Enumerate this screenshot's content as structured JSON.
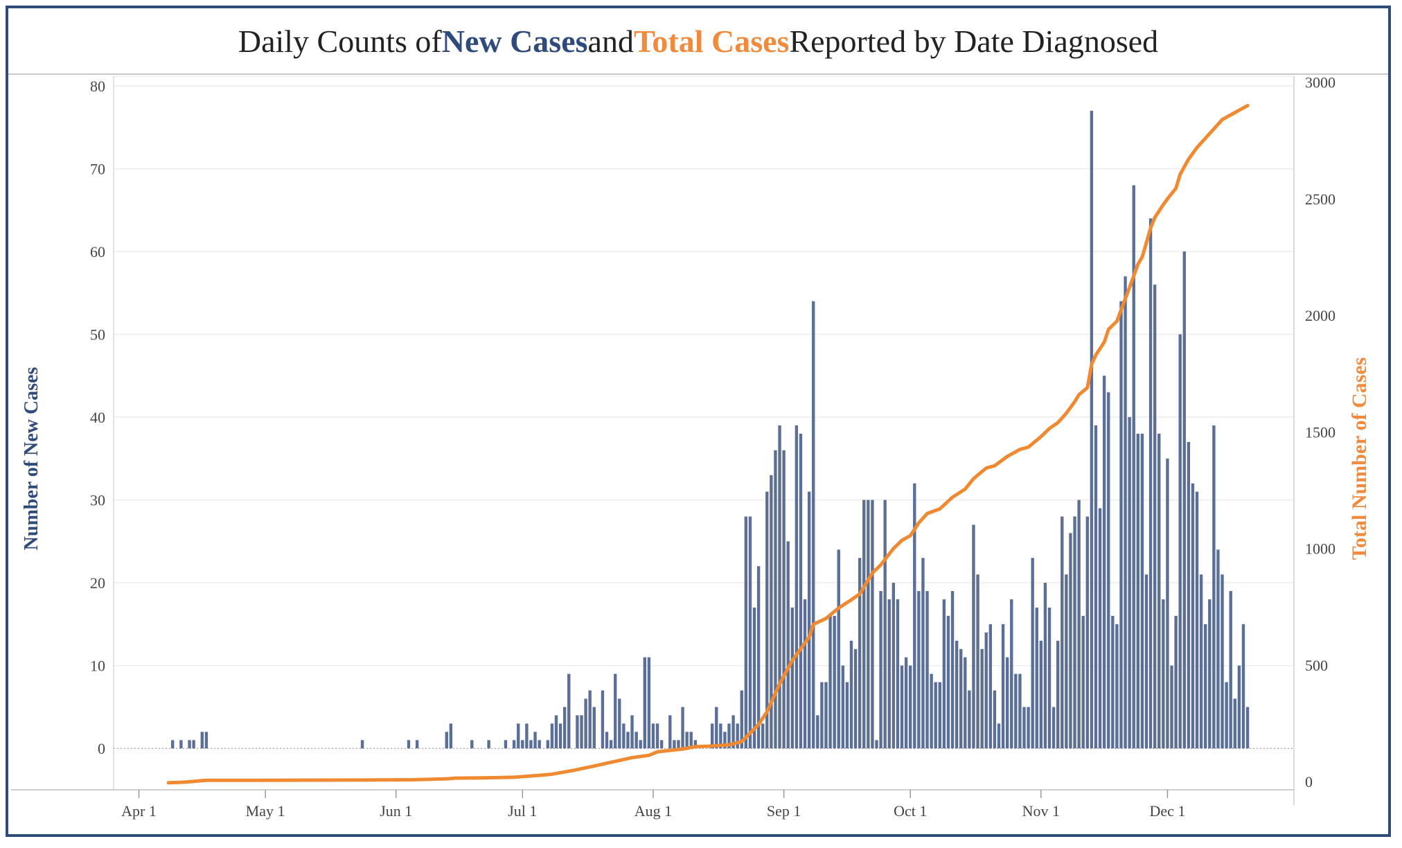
{
  "title": {
    "part1": "Daily Counts of ",
    "part2": "New Cases",
    "part3": " and ",
    "part4": "Total Cases",
    "part5": " Reported by Date Diagnosed"
  },
  "colors": {
    "bar": "#5b6f96",
    "line": "#f08a32",
    "new_cases": "#2f4b7c",
    "total_cases": "#f08a3c",
    "frame": "#2f4b7c"
  },
  "chart_data": {
    "type": "bar",
    "title": "Daily Counts of New Cases and Total Cases Reported by Date Diagnosed",
    "xlabel": "",
    "ylabel": "Number of New Cases",
    "y2label": "Total Number of Cases",
    "ylim": [
      -5,
      81
    ],
    "y2lim": [
      -35,
      3020
    ],
    "yticks": [
      0,
      10,
      20,
      30,
      40,
      50,
      60,
      70,
      80
    ],
    "y2ticks": [
      0,
      500,
      1000,
      1500,
      2000,
      2500,
      3000
    ],
    "xlim": [
      "2020-03-26",
      "2020-12-31"
    ],
    "xticks": [
      {
        "label": "Apr 1",
        "date": "2020-04-01"
      },
      {
        "label": "May 1",
        "date": "2020-05-01"
      },
      {
        "label": "Jun 1",
        "date": "2020-06-01"
      },
      {
        "label": "Jul 1",
        "date": "2020-07-01"
      },
      {
        "label": "Aug 1",
        "date": "2020-08-01"
      },
      {
        "label": "Sep 1",
        "date": "2020-09-01"
      },
      {
        "label": "Oct 1",
        "date": "2020-10-01"
      },
      {
        "label": "Nov 1",
        "date": "2020-11-01"
      },
      {
        "label": "Dec 1",
        "date": "2020-12-01"
      }
    ],
    "grid": true,
    "legend": "none",
    "series": [
      {
        "name": "New Cases",
        "type": "bar",
        "axis": "left",
        "points": [
          [
            "2020-04-09",
            1
          ],
          [
            "2020-04-11",
            1
          ],
          [
            "2020-04-13",
            1
          ],
          [
            "2020-04-14",
            1
          ],
          [
            "2020-04-16",
            2
          ],
          [
            "2020-04-17",
            2
          ],
          [
            "2020-05-24",
            1
          ],
          [
            "2020-06-04",
            1
          ],
          [
            "2020-06-06",
            1
          ],
          [
            "2020-06-13",
            2
          ],
          [
            "2020-06-14",
            3
          ],
          [
            "2020-06-19",
            1
          ],
          [
            "2020-06-23",
            1
          ],
          [
            "2020-06-27",
            1
          ],
          [
            "2020-06-29",
            1
          ],
          [
            "2020-06-30",
            3
          ],
          [
            "2020-07-01",
            1
          ],
          [
            "2020-07-02",
            3
          ],
          [
            "2020-07-03",
            1
          ],
          [
            "2020-07-04",
            2
          ],
          [
            "2020-07-05",
            1
          ],
          [
            "2020-07-07",
            1
          ],
          [
            "2020-07-08",
            3
          ],
          [
            "2020-07-09",
            4
          ],
          [
            "2020-07-10",
            3
          ],
          [
            "2020-07-11",
            5
          ],
          [
            "2020-07-12",
            9
          ],
          [
            "2020-07-14",
            4
          ],
          [
            "2020-07-15",
            4
          ],
          [
            "2020-07-16",
            6
          ],
          [
            "2020-07-17",
            7
          ],
          [
            "2020-07-18",
            5
          ],
          [
            "2020-07-20",
            7
          ],
          [
            "2020-07-21",
            2
          ],
          [
            "2020-07-22",
            1
          ],
          [
            "2020-07-23",
            9
          ],
          [
            "2020-07-24",
            6
          ],
          [
            "2020-07-25",
            3
          ],
          [
            "2020-07-26",
            2
          ],
          [
            "2020-07-27",
            4
          ],
          [
            "2020-07-28",
            2
          ],
          [
            "2020-07-29",
            1
          ],
          [
            "2020-07-30",
            11
          ],
          [
            "2020-07-31",
            11
          ],
          [
            "2020-08-01",
            3
          ],
          [
            "2020-08-02",
            3
          ],
          [
            "2020-08-03",
            1
          ],
          [
            "2020-08-05",
            4
          ],
          [
            "2020-08-06",
            1
          ],
          [
            "2020-08-07",
            1
          ],
          [
            "2020-08-08",
            5
          ],
          [
            "2020-08-09",
            2
          ],
          [
            "2020-08-10",
            2
          ],
          [
            "2020-08-11",
            1
          ],
          [
            "2020-08-15",
            3
          ],
          [
            "2020-08-16",
            5
          ],
          [
            "2020-08-17",
            3
          ],
          [
            "2020-08-18",
            2
          ],
          [
            "2020-08-19",
            3
          ],
          [
            "2020-08-20",
            4
          ],
          [
            "2020-08-21",
            3
          ],
          [
            "2020-08-22",
            7
          ],
          [
            "2020-08-23",
            28
          ],
          [
            "2020-08-24",
            28
          ],
          [
            "2020-08-25",
            17
          ],
          [
            "2020-08-26",
            22
          ],
          [
            "2020-08-27",
            3
          ],
          [
            "2020-08-28",
            31
          ],
          [
            "2020-08-29",
            33
          ],
          [
            "2020-08-30",
            36
          ],
          [
            "2020-08-31",
            39
          ],
          [
            "2020-09-01",
            36
          ],
          [
            "2020-09-02",
            25
          ],
          [
            "2020-09-03",
            17
          ],
          [
            "2020-09-04",
            39
          ],
          [
            "2020-09-05",
            38
          ],
          [
            "2020-09-06",
            18
          ],
          [
            "2020-09-07",
            31
          ],
          [
            "2020-09-08",
            54
          ],
          [
            "2020-09-09",
            4
          ],
          [
            "2020-09-10",
            8
          ],
          [
            "2020-09-11",
            8
          ],
          [
            "2020-09-12",
            16
          ],
          [
            "2020-09-13",
            16
          ],
          [
            "2020-09-14",
            24
          ],
          [
            "2020-09-15",
            10
          ],
          [
            "2020-09-16",
            8
          ],
          [
            "2020-09-17",
            13
          ],
          [
            "2020-09-18",
            12
          ],
          [
            "2020-09-19",
            23
          ],
          [
            "2020-09-20",
            30
          ],
          [
            "2020-09-21",
            30
          ],
          [
            "2020-09-22",
            30
          ],
          [
            "2020-09-23",
            1
          ],
          [
            "2020-09-24",
            19
          ],
          [
            "2020-09-25",
            30
          ],
          [
            "2020-09-26",
            18
          ],
          [
            "2020-09-27",
            20
          ],
          [
            "2020-09-28",
            18
          ],
          [
            "2020-09-29",
            10
          ],
          [
            "2020-09-30",
            11
          ],
          [
            "2020-10-01",
            10
          ],
          [
            "2020-10-02",
            32
          ],
          [
            "2020-10-03",
            19
          ],
          [
            "2020-10-04",
            23
          ],
          [
            "2020-10-05",
            19
          ],
          [
            "2020-10-06",
            9
          ],
          [
            "2020-10-07",
            8
          ],
          [
            "2020-10-08",
            8
          ],
          [
            "2020-10-09",
            18
          ],
          [
            "2020-10-10",
            16
          ],
          [
            "2020-10-11",
            19
          ],
          [
            "2020-10-12",
            13
          ],
          [
            "2020-10-13",
            12
          ],
          [
            "2020-10-14",
            11
          ],
          [
            "2020-10-15",
            7
          ],
          [
            "2020-10-16",
            27
          ],
          [
            "2020-10-17",
            21
          ],
          [
            "2020-10-18",
            12
          ],
          [
            "2020-10-19",
            14
          ],
          [
            "2020-10-20",
            15
          ],
          [
            "2020-10-21",
            7
          ],
          [
            "2020-10-22",
            3
          ],
          [
            "2020-10-23",
            15
          ],
          [
            "2020-10-24",
            11
          ],
          [
            "2020-10-25",
            18
          ],
          [
            "2020-10-26",
            9
          ],
          [
            "2020-10-27",
            9
          ],
          [
            "2020-10-28",
            5
          ],
          [
            "2020-10-29",
            5
          ],
          [
            "2020-10-30",
            23
          ],
          [
            "2020-10-31",
            17
          ],
          [
            "2020-11-01",
            13
          ],
          [
            "2020-11-02",
            20
          ],
          [
            "2020-11-03",
            17
          ],
          [
            "2020-11-04",
            5
          ],
          [
            "2020-11-05",
            13
          ],
          [
            "2020-11-06",
            28
          ],
          [
            "2020-11-07",
            21
          ],
          [
            "2020-11-08",
            26
          ],
          [
            "2020-11-09",
            28
          ],
          [
            "2020-11-10",
            30
          ],
          [
            "2020-11-11",
            16
          ],
          [
            "2020-11-12",
            28
          ],
          [
            "2020-11-13",
            77
          ],
          [
            "2020-11-14",
            39
          ],
          [
            "2020-11-15",
            29
          ],
          [
            "2020-11-16",
            45
          ],
          [
            "2020-11-17",
            43
          ],
          [
            "2020-11-18",
            16
          ],
          [
            "2020-11-19",
            15
          ],
          [
            "2020-11-20",
            54
          ],
          [
            "2020-11-21",
            57
          ],
          [
            "2020-11-22",
            40
          ],
          [
            "2020-11-23",
            68
          ],
          [
            "2020-11-24",
            38
          ],
          [
            "2020-11-25",
            38
          ],
          [
            "2020-11-26",
            21
          ],
          [
            "2020-11-27",
            64
          ],
          [
            "2020-11-28",
            56
          ],
          [
            "2020-11-29",
            38
          ],
          [
            "2020-11-30",
            18
          ],
          [
            "2020-12-01",
            35
          ],
          [
            "2020-12-02",
            10
          ],
          [
            "2020-12-03",
            16
          ],
          [
            "2020-12-04",
            50
          ],
          [
            "2020-12-05",
            60
          ],
          [
            "2020-12-06",
            37
          ],
          [
            "2020-12-07",
            32
          ],
          [
            "2020-12-08",
            31
          ],
          [
            "2020-12-09",
            21
          ],
          [
            "2020-12-10",
            15
          ],
          [
            "2020-12-11",
            18
          ],
          [
            "2020-12-12",
            39
          ],
          [
            "2020-12-13",
            24
          ],
          [
            "2020-12-14",
            21
          ],
          [
            "2020-12-15",
            8
          ],
          [
            "2020-12-16",
            19
          ],
          [
            "2020-12-17",
            6
          ],
          [
            "2020-12-18",
            10
          ],
          [
            "2020-12-19",
            15
          ],
          [
            "2020-12-20",
            5
          ]
        ]
      },
      {
        "name": "Total Cases",
        "type": "line",
        "axis": "right",
        "points": [
          [
            "2020-04-08",
            -5
          ],
          [
            "2020-04-12",
            -2
          ],
          [
            "2020-04-17",
            6
          ],
          [
            "2020-05-01",
            6
          ],
          [
            "2020-05-24",
            7
          ],
          [
            "2020-06-05",
            8
          ],
          [
            "2020-06-13",
            12
          ],
          [
            "2020-06-15",
            15
          ],
          [
            "2020-06-20",
            16
          ],
          [
            "2020-06-24",
            17
          ],
          [
            "2020-06-29",
            19
          ],
          [
            "2020-07-05",
            27
          ],
          [
            "2020-07-08",
            32
          ],
          [
            "2020-07-13",
            48
          ],
          [
            "2020-07-18",
            67
          ],
          [
            "2020-07-23",
            87
          ],
          [
            "2020-07-27",
            103
          ],
          [
            "2020-07-31",
            113
          ],
          [
            "2020-08-02",
            128
          ],
          [
            "2020-08-08",
            140
          ],
          [
            "2020-08-11",
            150
          ],
          [
            "2020-08-14",
            152
          ],
          [
            "2020-08-19",
            158
          ],
          [
            "2020-08-22",
            172
          ],
          [
            "2020-08-23",
            190
          ],
          [
            "2020-08-26",
            245
          ],
          [
            "2020-08-28",
            300
          ],
          [
            "2020-08-31",
            420
          ],
          [
            "2020-09-03",
            520
          ],
          [
            "2020-09-07",
            620
          ],
          [
            "2020-09-08",
            675
          ],
          [
            "2020-09-11",
            700
          ],
          [
            "2020-09-14",
            745
          ],
          [
            "2020-09-17",
            780
          ],
          [
            "2020-09-19",
            805
          ],
          [
            "2020-09-22",
            895
          ],
          [
            "2020-09-24",
            930
          ],
          [
            "2020-09-27",
            1000
          ],
          [
            "2020-09-29",
            1035
          ],
          [
            "2020-10-01",
            1055
          ],
          [
            "2020-10-03",
            1110
          ],
          [
            "2020-10-05",
            1150
          ],
          [
            "2020-10-08",
            1170
          ],
          [
            "2020-10-11",
            1220
          ],
          [
            "2020-10-14",
            1255
          ],
          [
            "2020-10-16",
            1300
          ],
          [
            "2020-10-19",
            1345
          ],
          [
            "2020-10-21",
            1355
          ],
          [
            "2020-10-24",
            1395
          ],
          [
            "2020-10-27",
            1425
          ],
          [
            "2020-10-29",
            1435
          ],
          [
            "2020-11-01",
            1480
          ],
          [
            "2020-11-03",
            1515
          ],
          [
            "2020-11-05",
            1540
          ],
          [
            "2020-11-07",
            1580
          ],
          [
            "2020-11-09",
            1630
          ],
          [
            "2020-11-10",
            1660
          ],
          [
            "2020-11-12",
            1690
          ],
          [
            "2020-11-13",
            1790
          ],
          [
            "2020-11-14",
            1830
          ],
          [
            "2020-11-16",
            1885
          ],
          [
            "2020-11-17",
            1940
          ],
          [
            "2020-11-19",
            1975
          ],
          [
            "2020-11-22",
            2120
          ],
          [
            "2020-11-24",
            2220
          ],
          [
            "2020-11-25",
            2250
          ],
          [
            "2020-11-27",
            2375
          ],
          [
            "2020-11-28",
            2420
          ],
          [
            "2020-11-30",
            2475
          ],
          [
            "2020-12-01",
            2500
          ],
          [
            "2020-12-03",
            2545
          ],
          [
            "2020-12-04",
            2605
          ],
          [
            "2020-12-06",
            2670
          ],
          [
            "2020-12-08",
            2720
          ],
          [
            "2020-12-10",
            2760
          ],
          [
            "2020-12-12",
            2800
          ],
          [
            "2020-12-14",
            2840
          ],
          [
            "2020-12-16",
            2860
          ],
          [
            "2020-12-18",
            2880
          ],
          [
            "2020-12-20",
            2900
          ]
        ]
      }
    ]
  }
}
